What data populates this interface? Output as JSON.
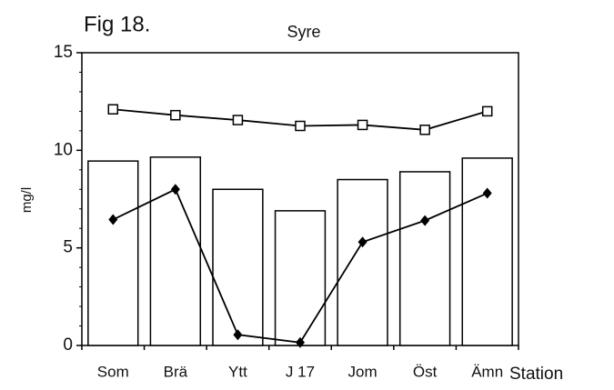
{
  "chart_data": {
    "type": "bar",
    "figure_label": "Fig 18.",
    "title": "Syre",
    "y_label": "mg/l",
    "x_label": "Station",
    "categories": [
      "Som",
      "Brä",
      "Ytt",
      "J 17",
      "Jom",
      "Öst",
      "Ämn"
    ],
    "series": [
      {
        "type": "bar",
        "color": "#ffffff",
        "values": [
          9.45,
          9.65,
          8.0,
          6.9,
          8.5,
          8.9,
          9.6
        ]
      },
      {
        "type": "line",
        "marker": "square",
        "color": "#000000",
        "values": [
          12.1,
          11.8,
          11.55,
          11.25,
          11.3,
          11.05,
          12.0
        ]
      },
      {
        "type": "line",
        "marker": "diamond",
        "color": "#000000",
        "values": [
          6.45,
          8.0,
          0.55,
          0.15,
          5.3,
          6.4,
          7.8
        ]
      }
    ],
    "ylim": [
      0,
      15
    ],
    "yticks": [
      0,
      5,
      10,
      15
    ],
    "yminorticks": [
      1,
      2,
      3,
      4,
      6,
      7,
      8,
      9,
      11,
      12,
      13,
      14
    ],
    "grid": false
  }
}
